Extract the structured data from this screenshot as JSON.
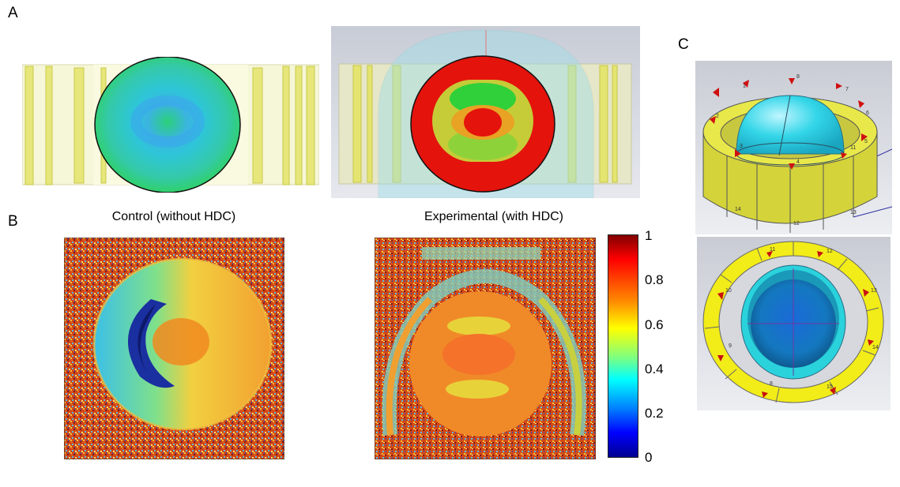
{
  "panels": {
    "a": {
      "letter": "A"
    },
    "b": {
      "letter": "B"
    },
    "c": {
      "letter": "C"
    }
  },
  "titles": {
    "control": "Control  (without HDC)",
    "experimental": "Experimental (with HDC)"
  },
  "colorbar": {
    "ticks": [
      "1",
      "0.8",
      "0.6",
      "0.4",
      "0.2",
      "0"
    ],
    "colors": [
      "#7f0000",
      "#ff0000",
      "#ff8c00",
      "#ffff00",
      "#7fff7f",
      "#00ffff",
      "#0080ff",
      "#0000ff",
      "#00008f"
    ]
  },
  "ring_top_labels": [
    "8",
    "7",
    "6",
    "5",
    "4",
    "3",
    "2",
    "1",
    "11",
    "12",
    "13",
    "14"
  ],
  "ring_bottom_labels": [
    "11",
    "12",
    "13",
    "14",
    "15",
    "8",
    "9",
    "10"
  ],
  "colors": {
    "sim_red": "#e4130c",
    "sim_green": "#1fcf4a",
    "coil_yellow": "#e8e84a"
  }
}
